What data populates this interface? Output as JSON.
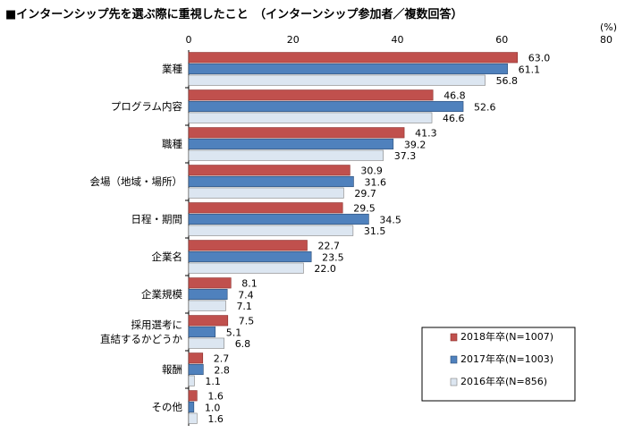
{
  "chart_data": {
    "type": "bar",
    "orientation": "horizontal",
    "title": "■インターンシップ先を選ぶ際に重視したこと　（インターンシップ参加者／複数回答）",
    "unit": "(%)",
    "xlim": [
      0,
      80
    ],
    "ticks": [
      0,
      20,
      40,
      60,
      80
    ],
    "grid": false,
    "legend_position": "bottom-right",
    "categories": [
      [
        "業種"
      ],
      [
        "プログラム内容"
      ],
      [
        "職種"
      ],
      [
        "会場（地域・場所）"
      ],
      [
        "日程・期間"
      ],
      [
        "企業名"
      ],
      [
        "企業規模"
      ],
      [
        "採用選考に",
        "直結するかどうか"
      ],
      [
        "報酬"
      ],
      [
        "その他"
      ]
    ],
    "series": [
      {
        "name": "2018年卒(N=1007)",
        "color": "#c0504d",
        "border": "#8b2d2a",
        "values": [
          63.0,
          46.8,
          41.3,
          30.9,
          29.5,
          22.7,
          8.1,
          7.5,
          2.7,
          1.6
        ]
      },
      {
        "name": "2017年卒(N=1003)",
        "color": "#4f81bd",
        "border": "#2c4d75",
        "values": [
          61.1,
          52.6,
          39.2,
          31.6,
          34.5,
          23.5,
          7.4,
          5.1,
          2.8,
          1.0
        ]
      },
      {
        "name": "2016年卒(N=856)",
        "color": "#dce6f1",
        "border": "#7f7f7f",
        "values": [
          56.8,
          46.6,
          37.3,
          29.7,
          31.5,
          22.0,
          7.1,
          6.8,
          1.1,
          1.6
        ]
      }
    ]
  }
}
